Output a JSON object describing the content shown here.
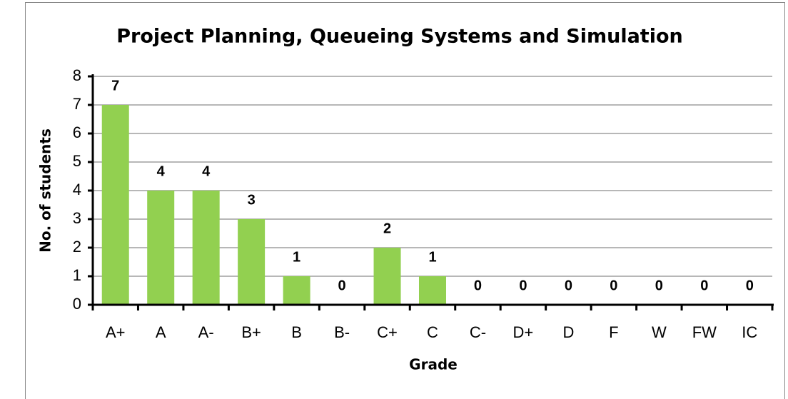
{
  "chart_data": {
    "type": "bar",
    "title": "Project Planning, Queueing Systems and Simulation",
    "x_label": "Grade",
    "y_label": "No. of students",
    "categories": [
      "A+",
      "A",
      "A-",
      "B+",
      "B",
      "B-",
      "C+",
      "C",
      "C-",
      "D+",
      "D",
      "F",
      "W",
      "FW",
      "IC"
    ],
    "values": [
      7,
      4,
      4,
      3,
      1,
      0,
      2,
      1,
      0,
      0,
      0,
      0,
      0,
      0,
      0
    ],
    "color": "#92d050",
    "ylim": [
      0,
      8
    ],
    "yticks": [
      0,
      1,
      2,
      3,
      4,
      5,
      6,
      7,
      8
    ],
    "grid": true
  }
}
